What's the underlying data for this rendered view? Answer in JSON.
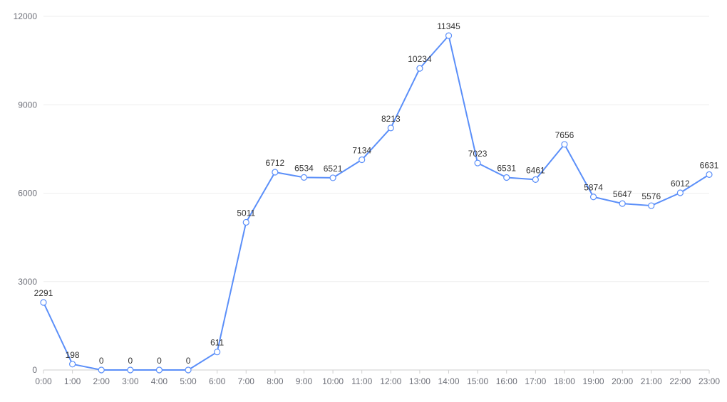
{
  "colors": {
    "series": "#5b8ff9",
    "grid": "#eeeeee",
    "axis": "#cfcfcf",
    "tick_text": "#6e7079",
    "label_text": "#333333"
  },
  "chart_data": {
    "type": "line",
    "title": "",
    "xlabel": "",
    "ylabel": "",
    "categories": [
      "0:00",
      "1:00",
      "2:00",
      "3:00",
      "4:00",
      "5:00",
      "6:00",
      "7:00",
      "8:00",
      "9:00",
      "10:00",
      "11:00",
      "12:00",
      "13:00",
      "14:00",
      "15:00",
      "16:00",
      "17:00",
      "18:00",
      "19:00",
      "20:00",
      "21:00",
      "22:00",
      "23:00"
    ],
    "series": [
      {
        "values": [
          2291,
          198,
          0,
          0,
          0,
          0,
          611,
          5011,
          6712,
          6534,
          6521,
          7134,
          8213,
          10234,
          11345,
          7023,
          6531,
          6461,
          7656,
          5874,
          5647,
          5576,
          6012,
          6631
        ]
      }
    ],
    "ylim": [
      0,
      12000
    ],
    "yticks": [
      0,
      3000,
      6000,
      9000,
      12000
    ],
    "grid": "horizontal",
    "legend": "none",
    "data_labels": true
  }
}
